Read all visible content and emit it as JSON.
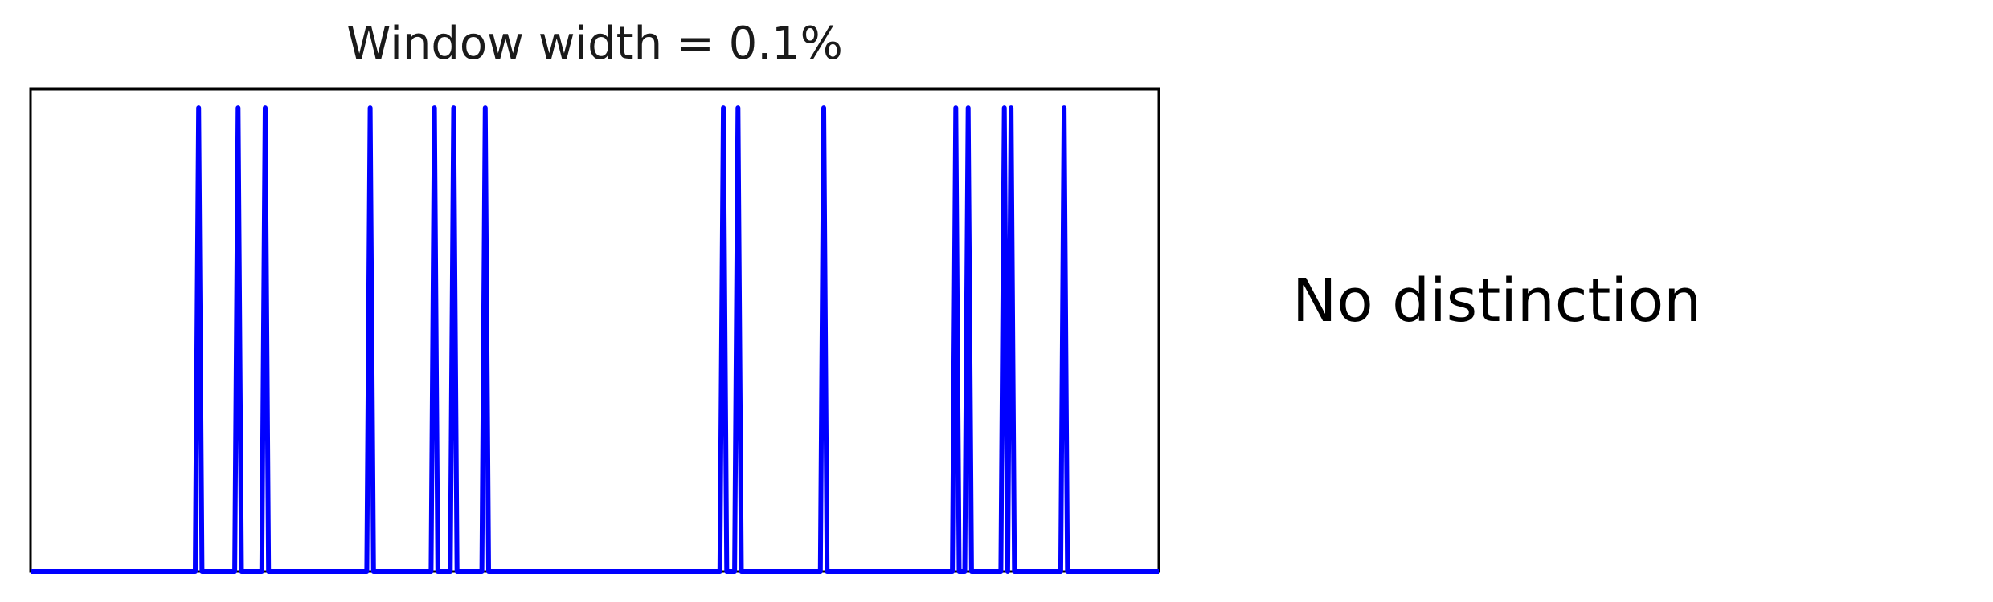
{
  "side_note": "No distinction",
  "chart_data": {
    "type": "line",
    "title": "Window width = 0.1%",
    "xlabel": "",
    "ylabel": "",
    "xlim": [
      0,
      1000
    ],
    "ylim": [
      0,
      1.04
    ],
    "grid": false,
    "legend": "none",
    "series_color": "#0000ff",
    "baseline": 0,
    "spike_height": 1,
    "x_range": [
      0,
      1000
    ],
    "spike_positions": [
      149,
      184,
      208,
      301,
      358,
      375,
      403,
      614,
      627,
      703,
      820,
      831,
      863,
      869,
      916
    ]
  }
}
